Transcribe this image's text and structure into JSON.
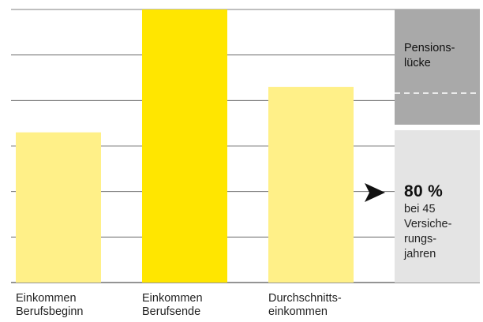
{
  "chart_data": {
    "type": "bar",
    "categories": [
      "Einkommen\nBerufsbeginn",
      "Einkommen\nBerufsende",
      "Durchschnitts-\neinkommen"
    ],
    "values": [
      3.3,
      6.0,
      4.3
    ],
    "ylim": [
      0,
      6
    ],
    "grid": true,
    "title": "",
    "xlabel": "",
    "ylabel": "",
    "highlight_index": 1,
    "colors": {
      "bar": "#FFF088",
      "bar_highlight": "#FFE600",
      "gap_box": "#A9A9A9",
      "replacement_box": "#E4E4E4",
      "grid": "#555555",
      "arrow": "#111111"
    },
    "annotations": {
      "pension_gap_label": "Pensions-\nlücke",
      "replacement_rate": "80 %",
      "replacement_desc": "bei 45\nVersiche-\nrungs-\njahren"
    }
  }
}
